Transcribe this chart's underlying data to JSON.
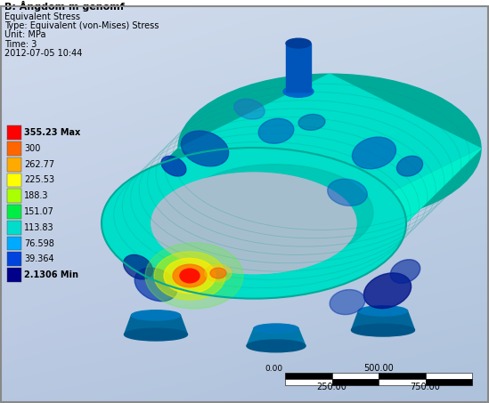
{
  "title_line1": "B: Ångdom m genomf",
  "title_line2": "Equivalent Stress",
  "title_line3": "Type: Equivalent (von-Mises) Stress",
  "title_line4": "Unit: MPa",
  "title_line5": "Time: 3",
  "title_line6": "2012-07-05 10:44",
  "legend_labels": [
    "355.23 Max",
    "300",
    "262.77",
    "225.53",
    "188.3",
    "151.07",
    "113.83",
    "76.598",
    "39.364",
    "2.1306 Min"
  ],
  "legend_colors": [
    "#ff0000",
    "#ff6600",
    "#ffaa00",
    "#ffff00",
    "#aaff00",
    "#00ee44",
    "#00ddcc",
    "#00aaff",
    "#0044dd",
    "#00008b"
  ],
  "scale_label_center": "500.00",
  "scale_label_left": "250.00",
  "scale_label_right": "750.00",
  "scale_zero": "0.00",
  "border_color": "#888888",
  "figsize": [
    5.49,
    4.53
  ],
  "dpi": 100
}
